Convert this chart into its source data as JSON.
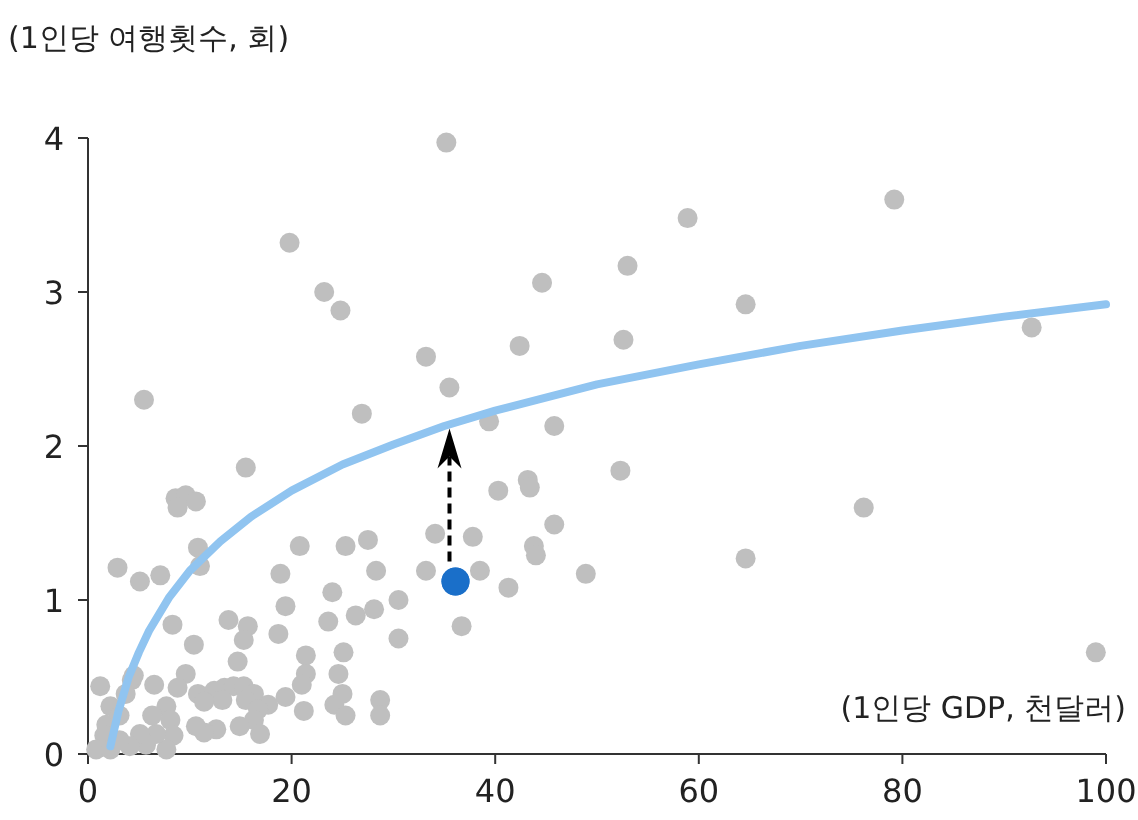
{
  "chart_data": {
    "type": "scatter",
    "ylabel": "(1인당 여행횟수, 회)",
    "xlabel": "(1인당 GDP, 천달러)",
    "xlim": [
      0,
      100
    ],
    "ylim": [
      0,
      4
    ],
    "xticks": [
      0,
      20,
      40,
      60,
      80,
      100
    ],
    "yticks": [
      0,
      1,
      2,
      3,
      4
    ],
    "grid": false,
    "marker": "circle",
    "series": [
      {
        "color": "#bfbfbf",
        "x": [
          35.2,
          19.8,
          23.2,
          24.8,
          5.5,
          33.2,
          35.5,
          26.9,
          39.4,
          42.4,
          44.6,
          53.0,
          58.9,
          64.6,
          79.2,
          92.7,
          52.6,
          45.8,
          52.3,
          43.2,
          40.3,
          43.4,
          45.8,
          43.8,
          44.0,
          48.9,
          64.6,
          76.2,
          99.0,
          41.3,
          34.1,
          37.8,
          33.2,
          38.5,
          36.7,
          30.5,
          15.5,
          8.6,
          9.6,
          10.6,
          8.8,
          10.8,
          2.9,
          5.1,
          7.1,
          11.0,
          20.8,
          25.3,
          27.5,
          28.3,
          18.9,
          24.0,
          19.4,
          8.3,
          13.8,
          15.7,
          15.3,
          18.7,
          23.6,
          26.3,
          28.1,
          30.5,
          10.4,
          14.7,
          21.4,
          25.1,
          21.4,
          24.6,
          21.0,
          1.2,
          4.3,
          6.5,
          9.6,
          8.8,
          10.8,
          12.4,
          13.4,
          14.3,
          15.3,
          16.3,
          15.5,
          13.2,
          11.4,
          17.7,
          19.4,
          21.2,
          24.2,
          25.0,
          25.3,
          28.7,
          28.7,
          16.7,
          16.3,
          16.9,
          14.9,
          12.6,
          11.4,
          10.6,
          7.7,
          8.1,
          8.4,
          7.7,
          6.7,
          5.7,
          5.1,
          4.1,
          2.2,
          1.8,
          1.6,
          0.8,
          2.2,
          3.1,
          3.7,
          4.5,
          3.1,
          6.3
        ],
        "values": [
          3.97,
          3.32,
          3.0,
          2.88,
          2.3,
          2.58,
          2.38,
          2.21,
          2.16,
          2.65,
          3.06,
          3.17,
          3.48,
          2.92,
          3.6,
          2.77,
          2.69,
          2.13,
          1.84,
          1.78,
          1.71,
          1.73,
          1.49,
          1.35,
          1.29,
          1.17,
          1.27,
          1.6,
          0.66,
          1.08,
          1.43,
          1.41,
          1.19,
          1.19,
          0.83,
          1.0,
          1.86,
          1.66,
          1.68,
          1.64,
          1.6,
          1.34,
          1.21,
          1.12,
          1.16,
          1.22,
          1.35,
          1.35,
          1.39,
          1.19,
          1.17,
          1.05,
          0.96,
          0.84,
          0.87,
          0.83,
          0.74,
          0.78,
          0.86,
          0.9,
          0.94,
          0.75,
          0.71,
          0.6,
          0.64,
          0.66,
          0.52,
          0.52,
          0.45,
          0.44,
          0.48,
          0.45,
          0.52,
          0.43,
          0.39,
          0.41,
          0.43,
          0.44,
          0.44,
          0.39,
          0.35,
          0.35,
          0.34,
          0.32,
          0.37,
          0.28,
          0.32,
          0.39,
          0.25,
          0.35,
          0.25,
          0.29,
          0.22,
          0.13,
          0.18,
          0.16,
          0.14,
          0.18,
          0.31,
          0.22,
          0.12,
          0.03,
          0.13,
          0.06,
          0.13,
          0.05,
          0.31,
          0.19,
          0.12,
          0.03,
          0.03,
          0.09,
          0.39,
          0.51,
          0.25,
          0.25
        ]
      },
      {
        "type": "line",
        "color": "#90c4f0",
        "marker": "none",
        "line_style": "solid",
        "x": [
          2.2,
          3,
          4,
          5,
          6,
          8,
          10,
          13,
          16,
          20,
          25,
          30,
          35,
          40,
          50,
          60,
          70,
          80,
          90,
          100
        ],
        "values": [
          0.05,
          0.28,
          0.5,
          0.66,
          0.8,
          1.02,
          1.19,
          1.38,
          1.54,
          1.71,
          1.88,
          2.01,
          2.13,
          2.23,
          2.4,
          2.53,
          2.65,
          2.75,
          2.84,
          2.92
        ]
      },
      {
        "color": "#1a6fc9",
        "x": [
          36.1
        ],
        "values": [
          1.12
        ]
      }
    ]
  }
}
